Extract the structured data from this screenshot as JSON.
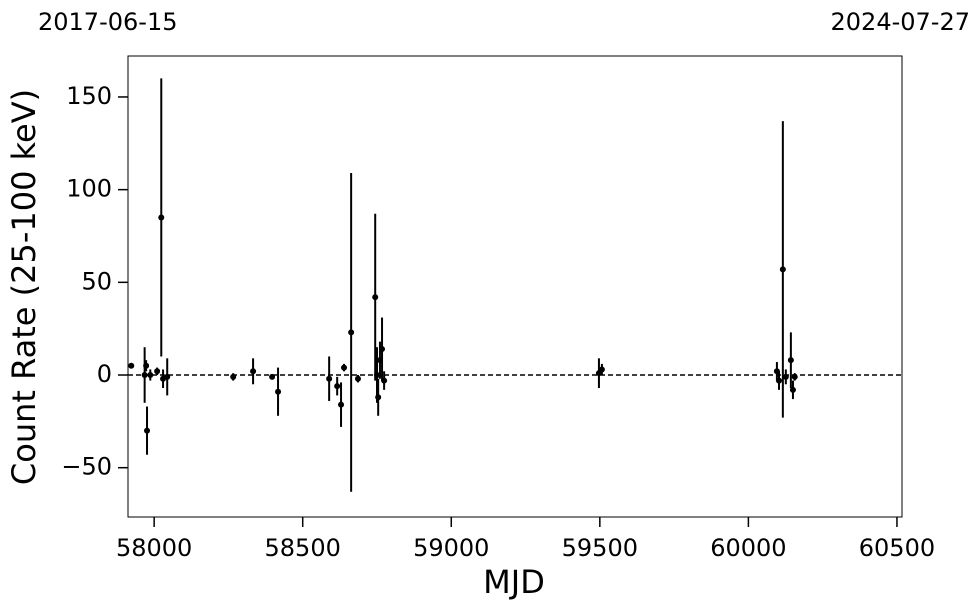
{
  "chart_data": {
    "type": "scatter",
    "annotations": [
      "2017-06-15",
      "2024-07-27"
    ],
    "xlabel": "MJD",
    "ylabel": "Count Rate (25-100 keV)",
    "xlim": [
      57912,
      60517
    ],
    "ylim": [
      -76.6,
      172.1
    ],
    "xticks": [
      58000,
      58500,
      59000,
      59500,
      60000,
      60500
    ],
    "yticks": [
      {
        "value": -50,
        "label": "−50"
      },
      0,
      50,
      100,
      150
    ],
    "hline": 0,
    "series": [
      {
        "color": "#000000",
        "x": [
          57923,
          57968,
          57976,
          57973,
          57987,
          58010,
          58024,
          58030,
          58044,
          58266,
          58333,
          58397,
          58417,
          58589,
          58616,
          58629,
          58639,
          58663,
          58686,
          58744,
          58750,
          58754,
          58760,
          58767,
          58774,
          59497,
          59507,
          60096,
          60103,
          60116,
          60126,
          60143,
          60150,
          60156
        ],
        "values": [
          5,
          0,
          -30,
          5,
          0,
          2,
          85,
          -2,
          -1,
          -1,
          2,
          -1,
          -9,
          -2,
          -6,
          -16,
          4,
          23,
          -2,
          42,
          0,
          -12,
          8,
          14,
          -3,
          1,
          3,
          2,
          -3,
          57,
          -1,
          8,
          -8,
          -1
        ],
        "errors": [
          1,
          15,
          13,
          3,
          3,
          2,
          75,
          5,
          10,
          2,
          7,
          1,
          13,
          12,
          5,
          12,
          2,
          86,
          2,
          45,
          15,
          10,
          10,
          17,
          5,
          8,
          3,
          5,
          5,
          80,
          4,
          15,
          5,
          2
        ]
      }
    ]
  }
}
